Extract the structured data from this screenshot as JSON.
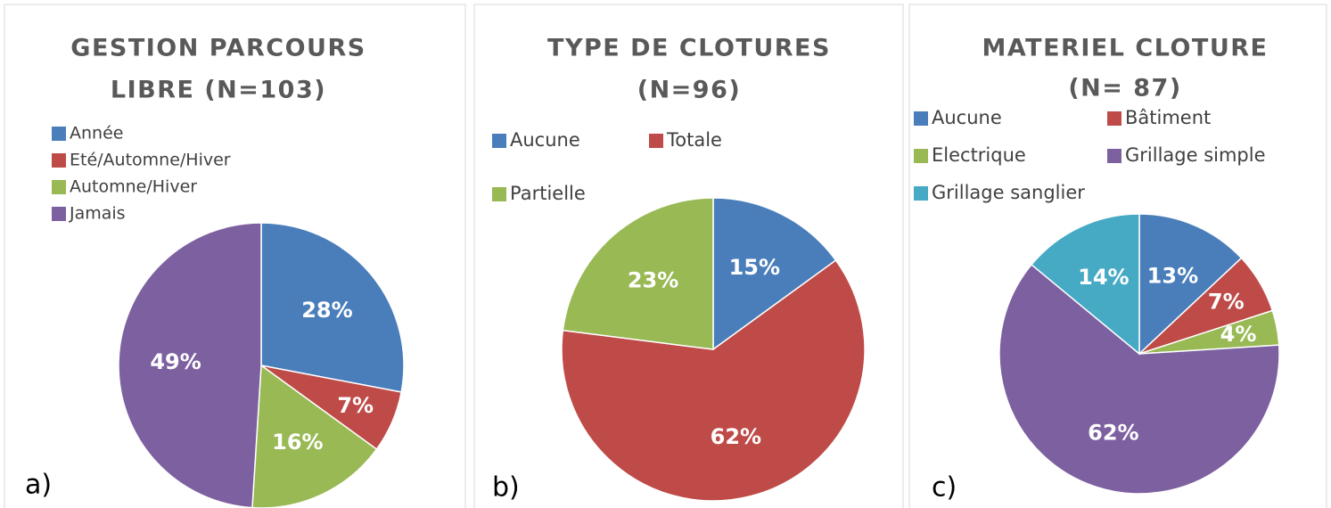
{
  "chart_data": [
    {
      "type": "pie",
      "title": [
        "GESTION PARCOURS",
        "LIBRE (N=103)"
      ],
      "panel_label": "a)",
      "categories": [
        "Année",
        "Eté/Automne/Hiver",
        "Automne/Hiver",
        "Jamais"
      ],
      "values": [
        28,
        7,
        16,
        49
      ],
      "value_labels": [
        "28%",
        "7%",
        "16%",
        "49%"
      ],
      "colors": [
        "#4a7ebb",
        "#be4b48",
        "#98b954",
        "#7d60a0"
      ],
      "legend": "top-left"
    },
    {
      "type": "pie",
      "title": [
        "TYPE DE CLOTURES",
        "(N=96)"
      ],
      "panel_label": "b)",
      "categories": [
        "Aucune",
        "Totale",
        "Partielle"
      ],
      "values": [
        15,
        62,
        23
      ],
      "value_labels": [
        "15%",
        "62%",
        "23%"
      ],
      "colors": [
        "#4a7ebb",
        "#be4b48",
        "#98b954"
      ],
      "legend": "top"
    },
    {
      "type": "pie",
      "title": [
        "MATERIEL CLOTURE",
        "(N= 87)"
      ],
      "panel_label": "c)",
      "categories": [
        "Aucune",
        "Bâtiment",
        "Electrique",
        "Grillage simple",
        "Grillage sanglier"
      ],
      "values": [
        13,
        7,
        4,
        62,
        14
      ],
      "value_labels": [
        "13%",
        "7%",
        "4%",
        "62%",
        "14%"
      ],
      "colors": [
        "#4a7ebb",
        "#be4b48",
        "#98b954",
        "#7d60a0",
        "#46aac5"
      ],
      "legend": "top"
    }
  ]
}
